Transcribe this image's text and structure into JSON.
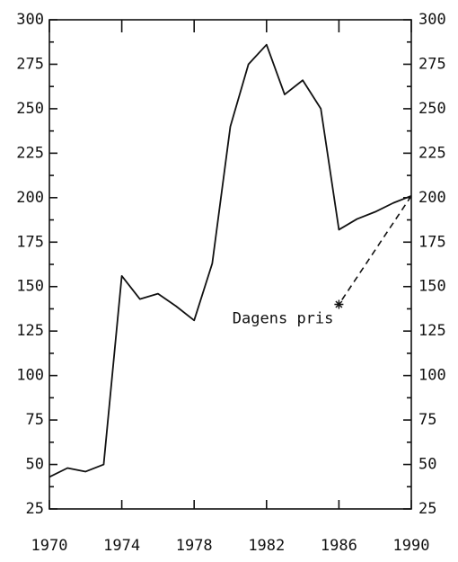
{
  "chart_data": {
    "type": "line",
    "x": [
      1970,
      1971,
      1972,
      1973,
      1974,
      1975,
      1976,
      1977,
      1978,
      1979,
      1980,
      1981,
      1982,
      1983,
      1984,
      1985,
      1986,
      1987,
      1988,
      1989,
      1990
    ],
    "series": [
      {
        "color": "#111111",
        "values": [
          43,
          48,
          46,
          50,
          156,
          143,
          146,
          139,
          131,
          163,
          240,
          275,
          286,
          258,
          266,
          250,
          182,
          188,
          192,
          197,
          201
        ]
      }
    ],
    "annotation": {
      "text": "Dagens pris",
      "x": 1986,
      "y": 140
    },
    "xlim": [
      1970,
      1990
    ],
    "xticks": [
      1970,
      1974,
      1978,
      1982,
      1986,
      1990
    ],
    "ylim": [
      25,
      300
    ],
    "yticks": [
      25,
      50,
      75,
      100,
      125,
      150,
      175,
      200,
      225,
      250,
      275,
      300
    ],
    "grid": false
  }
}
